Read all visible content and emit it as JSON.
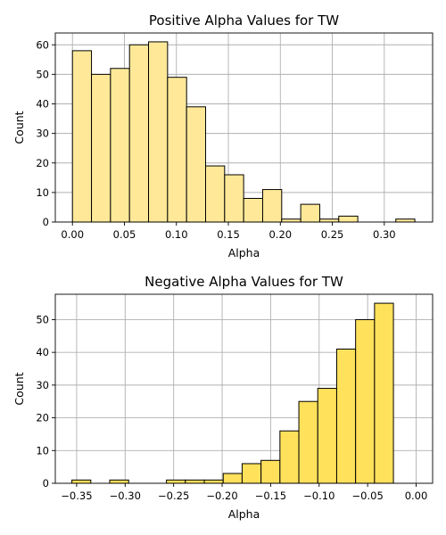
{
  "chart_data": [
    {
      "type": "bar",
      "title": "Positive Alpha Values for TW",
      "xlabel": "Alpha",
      "ylabel": "Count",
      "color": "#FFE999",
      "grid": true,
      "xlim": [
        -0.0165,
        0.3465
      ],
      "ylim": [
        0,
        64
      ],
      "xticks": [
        0.0,
        0.05,
        0.1,
        0.15,
        0.2,
        0.25,
        0.3
      ],
      "xtick_labels": [
        "0.00",
        "0.05",
        "0.10",
        "0.15",
        "0.20",
        "0.25",
        "0.30"
      ],
      "yticks": [
        0,
        10,
        20,
        30,
        40,
        50,
        60
      ],
      "ytick_labels": [
        "0",
        "10",
        "20",
        "30",
        "40",
        "50",
        "60"
      ],
      "bin_width": 0.0183,
      "bin_starts": [
        0.0,
        0.0183,
        0.0366,
        0.0549,
        0.0732,
        0.0915,
        0.1098,
        0.1281,
        0.1464,
        0.1647,
        0.183,
        0.2013,
        0.2196,
        0.2379,
        0.2562,
        0.2745,
        0.2928,
        0.3111
      ],
      "values": [
        58,
        50,
        52,
        60,
        61,
        49,
        39,
        19,
        16,
        8,
        11,
        1,
        6,
        1,
        2,
        0,
        0,
        1
      ]
    },
    {
      "type": "bar",
      "title": "Negative Alpha Values for TW",
      "xlabel": "Alpha",
      "ylabel": "Count",
      "color": "#FFE15C",
      "grid": true,
      "xlim": [
        -0.372,
        0.017
      ],
      "ylim": [
        0,
        57.75
      ],
      "xticks": [
        -0.35,
        -0.3,
        -0.25,
        -0.2,
        -0.15,
        -0.1,
        -0.05,
        0.0
      ],
      "xtick_labels": [
        "−0.35",
        "−0.30",
        "−0.25",
        "−0.20",
        "−0.15",
        "−0.10",
        "−0.05",
        "0.00"
      ],
      "yticks": [
        0,
        10,
        20,
        30,
        40,
        50
      ],
      "ytick_labels": [
        "0",
        "10",
        "20",
        "30",
        "40",
        "50"
      ],
      "bin_width": 0.0195,
      "bin_starts": [
        -0.3549,
        -0.3354,
        -0.3159,
        -0.2964,
        -0.2769,
        -0.2574,
        -0.2379,
        -0.2184,
        -0.1989,
        -0.1794,
        -0.1599,
        -0.1404,
        -0.1209,
        -0.1014,
        -0.0819,
        -0.0624,
        -0.0429,
        -0.0234
      ],
      "values": [
        1,
        0,
        1,
        0,
        0,
        1,
        1,
        1,
        3,
        6,
        7,
        16,
        25,
        29,
        41,
        50,
        55,
        0
      ]
    }
  ]
}
